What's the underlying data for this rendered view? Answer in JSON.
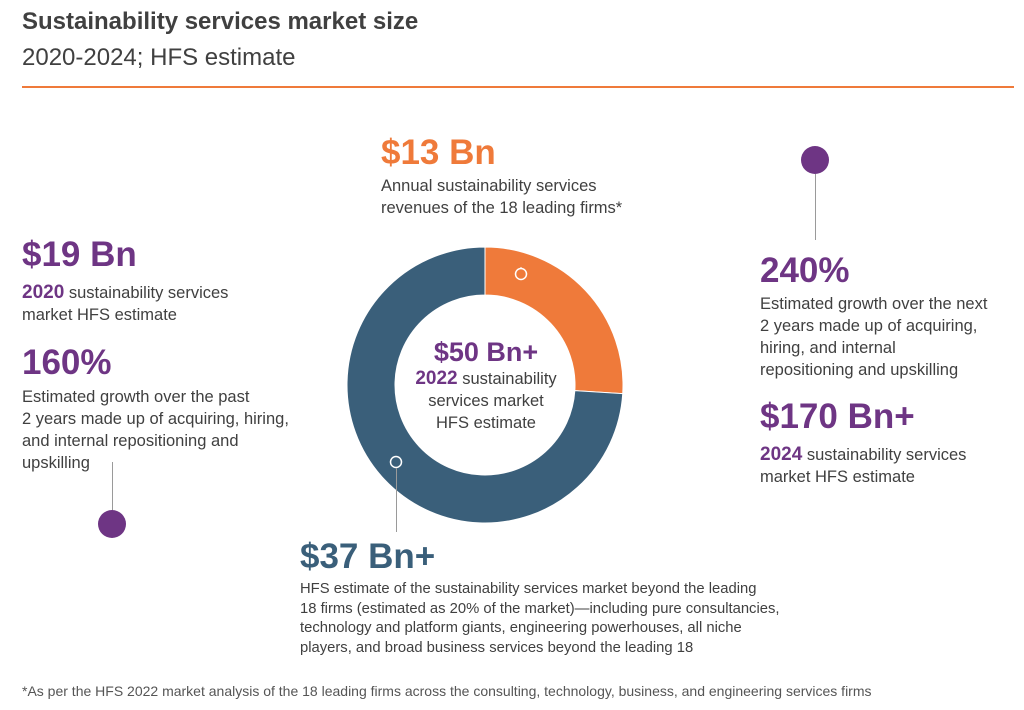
{
  "header": {
    "title": "Sustainability services market size",
    "subtitle": "2020-2024; HFS estimate"
  },
  "colors": {
    "orange": "#ef7a3a",
    "blue": "#3a5f7a",
    "purple": "#6e3584"
  },
  "chart_data": {
    "type": "pie",
    "donut": true,
    "categories": [
      "Leading 18 firms",
      "Beyond the leading 18 firms"
    ],
    "values": [
      13,
      37
    ],
    "colors": [
      "#ef7a3a",
      "#3a5f7a"
    ],
    "center": {
      "value": "$50 Bn+",
      "year": "2022",
      "label_line1": " sustainability",
      "label_line2": "services market",
      "label_line3": "HFS estimate"
    }
  },
  "callouts": {
    "leading_firms": {
      "value": "$13 Bn",
      "line1": "Annual sustainability services",
      "line2": "revenues of the 18 leading firms*"
    },
    "beyond_firms": {
      "value": "$37 Bn+",
      "line1": "HFS estimate of the sustainability services market beyond the leading",
      "line2": "18 firms (estimated as 20% of the market)—including pure consultancies,",
      "line3": "technology and platform giants, engineering powerhouses, all niche",
      "line4": "players, and broad business services beyond the leading 18"
    },
    "market_2020": {
      "value": "$19 Bn",
      "year": "2020",
      "line1": " sustainability services",
      "line2": "market HFS estimate"
    },
    "growth_past": {
      "value": "160%",
      "line1": "Estimated growth over the past",
      "line2": "2 years made up of acquiring, hiring,",
      "line3": "and internal repositioning and",
      "line4": "upskilling"
    },
    "growth_next": {
      "value": "240%",
      "line1": "Estimated growth over the next",
      "line2": "2 years made up of acquiring,",
      "line3": "hiring, and internal",
      "line4": "repositioning and upskilling"
    },
    "market_2024": {
      "value": "$170 Bn+",
      "year": "2024",
      "line1": " sustainability services",
      "line2": "market HFS estimate"
    }
  },
  "footnote": "*As per the HFS 2022 market analysis of the 18 leading firms across the consulting, technology, business, and engineering services firms"
}
